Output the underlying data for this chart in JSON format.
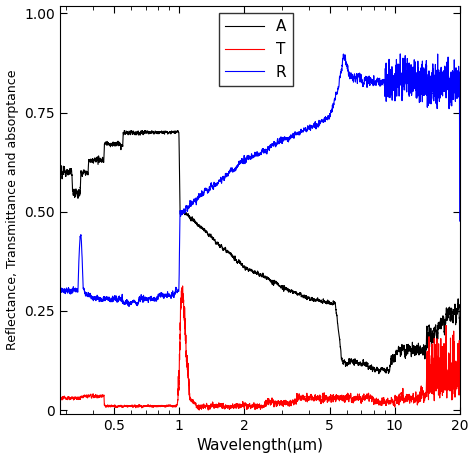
{
  "title": "",
  "xlabel": "Wavelength(μm)",
  "ylabel": "Reflectance, Transmittance and absorptance",
  "xlim_log": [
    0.28,
    20
  ],
  "ylim": [
    -0.01,
    1.02
  ],
  "yticks": [
    0,
    0.25,
    0.5,
    0.75,
    1.0
  ],
  "ytick_labels": [
    "0",
    "0.25",
    "0.50",
    "0.75",
    "1.00"
  ],
  "xticks": [
    0.5,
    1,
    2,
    5,
    10,
    20
  ],
  "xtick_labels": [
    "0.5",
    "1",
    "2",
    "5",
    "10",
    "20"
  ],
  "legend_labels": [
    "A",
    "T",
    "R"
  ],
  "legend_colors": [
    "black",
    "red",
    "blue"
  ],
  "line_width": 0.8,
  "background_color": "#ffffff"
}
